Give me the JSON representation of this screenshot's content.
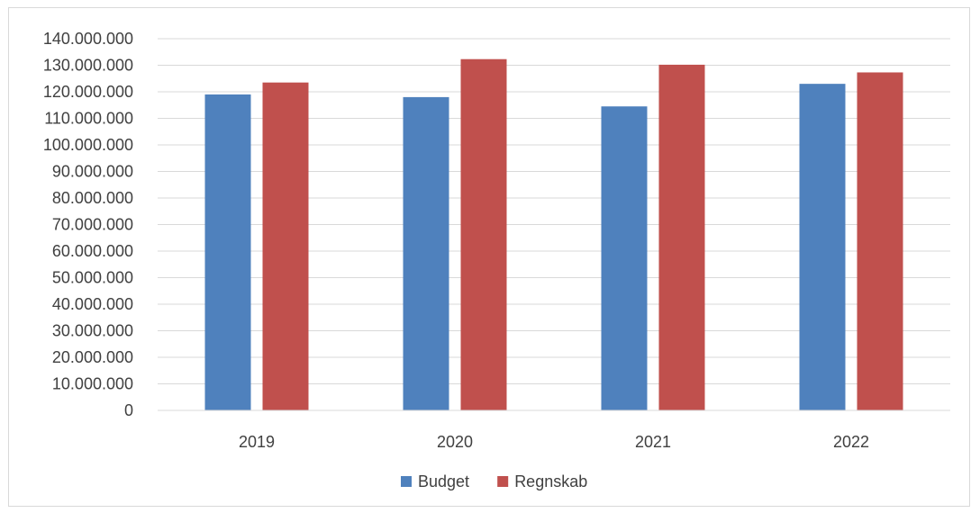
{
  "chart_data": {
    "type": "bar",
    "categories": [
      "2019",
      "2020",
      "2021",
      "2022"
    ],
    "series": [
      {
        "name": "Budget",
        "color": "#4f81bd",
        "values": [
          119000000,
          118000000,
          114500000,
          123000000
        ]
      },
      {
        "name": "Regnskab",
        "color": "#c0504d",
        "values": [
          123500000,
          132300000,
          130200000,
          127300000
        ]
      }
    ],
    "ylim": [
      0,
      140000000
    ],
    "y_ticks": [
      "0",
      "10.000.000",
      "20.000.000",
      "30.000.000",
      "40.000.000",
      "50.000.000",
      "60.000.000",
      "70.000.000",
      "80.000.000",
      "90.000.000",
      "100.000.000",
      "110.000.000",
      "120.000.000",
      "130.000.000",
      "140.000.000"
    ],
    "y_tick_step": 10000000,
    "grid": true,
    "legend_position": "bottom",
    "title": "",
    "xlabel": "",
    "ylabel": ""
  }
}
